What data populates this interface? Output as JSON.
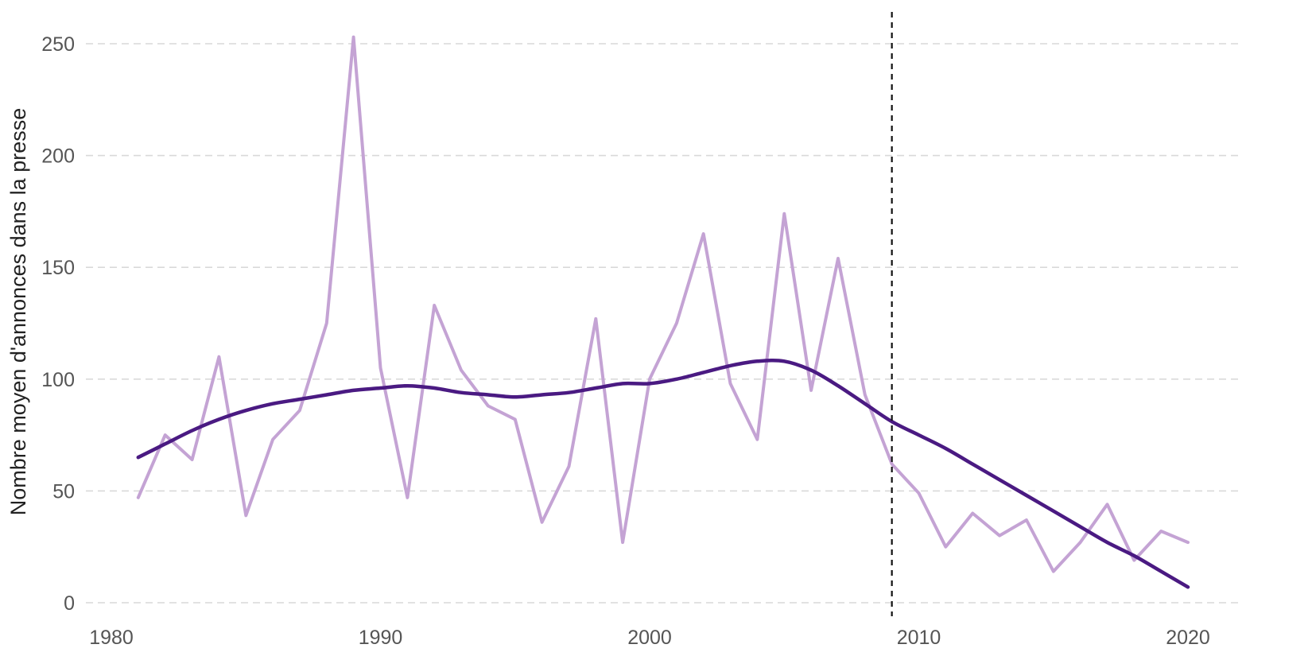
{
  "chart_data": {
    "type": "line",
    "title": "",
    "xlabel": "",
    "ylabel": "Nombre moyen d'annonces dans la presse",
    "xlim": [
      1980,
      2021
    ],
    "ylim": [
      0,
      255
    ],
    "x_ticks": [
      1980,
      1990,
      2000,
      2010,
      2020
    ],
    "y_ticks": [
      0,
      50,
      100,
      150,
      200,
      250
    ],
    "grid": "horizontal",
    "legend": "none",
    "colors": {
      "raw": "#c4a3d4",
      "trend": "#4a1a82",
      "reference_line": "#111111"
    },
    "reference_line": {
      "x": 2009,
      "style": "dashed"
    },
    "series": [
      {
        "x": [
          1981,
          1982,
          1983,
          1984,
          1985,
          1986,
          1987,
          1988,
          1989,
          1990,
          1991,
          1992,
          1993,
          1994,
          1995,
          1996,
          1997,
          1998,
          1999,
          2000,
          2001,
          2002,
          2003,
          2004,
          2005,
          2006,
          2007,
          2008,
          2009,
          2010,
          2011,
          2012,
          2013,
          2014,
          2015,
          2016,
          2017,
          2018,
          2019,
          2020
        ],
        "values": [
          47,
          75,
          64,
          110,
          39,
          73,
          86,
          125,
          253,
          105,
          47,
          133,
          104,
          88,
          82,
          36,
          61,
          127,
          27,
          100,
          125,
          165,
          98,
          73,
          174,
          95,
          154,
          93,
          62,
          49,
          25,
          40,
          30,
          37,
          14,
          27,
          44,
          19,
          32,
          27
        ]
      },
      {
        "x": [
          1981,
          1982,
          1983,
          1984,
          1985,
          1986,
          1987,
          1988,
          1989,
          1990,
          1991,
          1992,
          1993,
          1994,
          1995,
          1996,
          1997,
          1998,
          1999,
          2000,
          2001,
          2002,
          2003,
          2004,
          2005,
          2006,
          2007,
          2008,
          2009,
          2010,
          2011,
          2012,
          2013,
          2014,
          2015,
          2016,
          2017,
          2018,
          2019,
          2020
        ],
        "values": [
          65,
          71,
          77,
          82,
          86,
          89,
          91,
          93,
          95,
          96,
          97,
          96,
          94,
          93,
          92,
          93,
          94,
          96,
          98,
          98,
          100,
          103,
          106,
          108,
          108,
          104,
          97,
          89,
          81,
          75,
          69,
          62,
          55,
          48,
          41,
          34,
          27,
          21,
          14,
          7
        ]
      }
    ]
  }
}
